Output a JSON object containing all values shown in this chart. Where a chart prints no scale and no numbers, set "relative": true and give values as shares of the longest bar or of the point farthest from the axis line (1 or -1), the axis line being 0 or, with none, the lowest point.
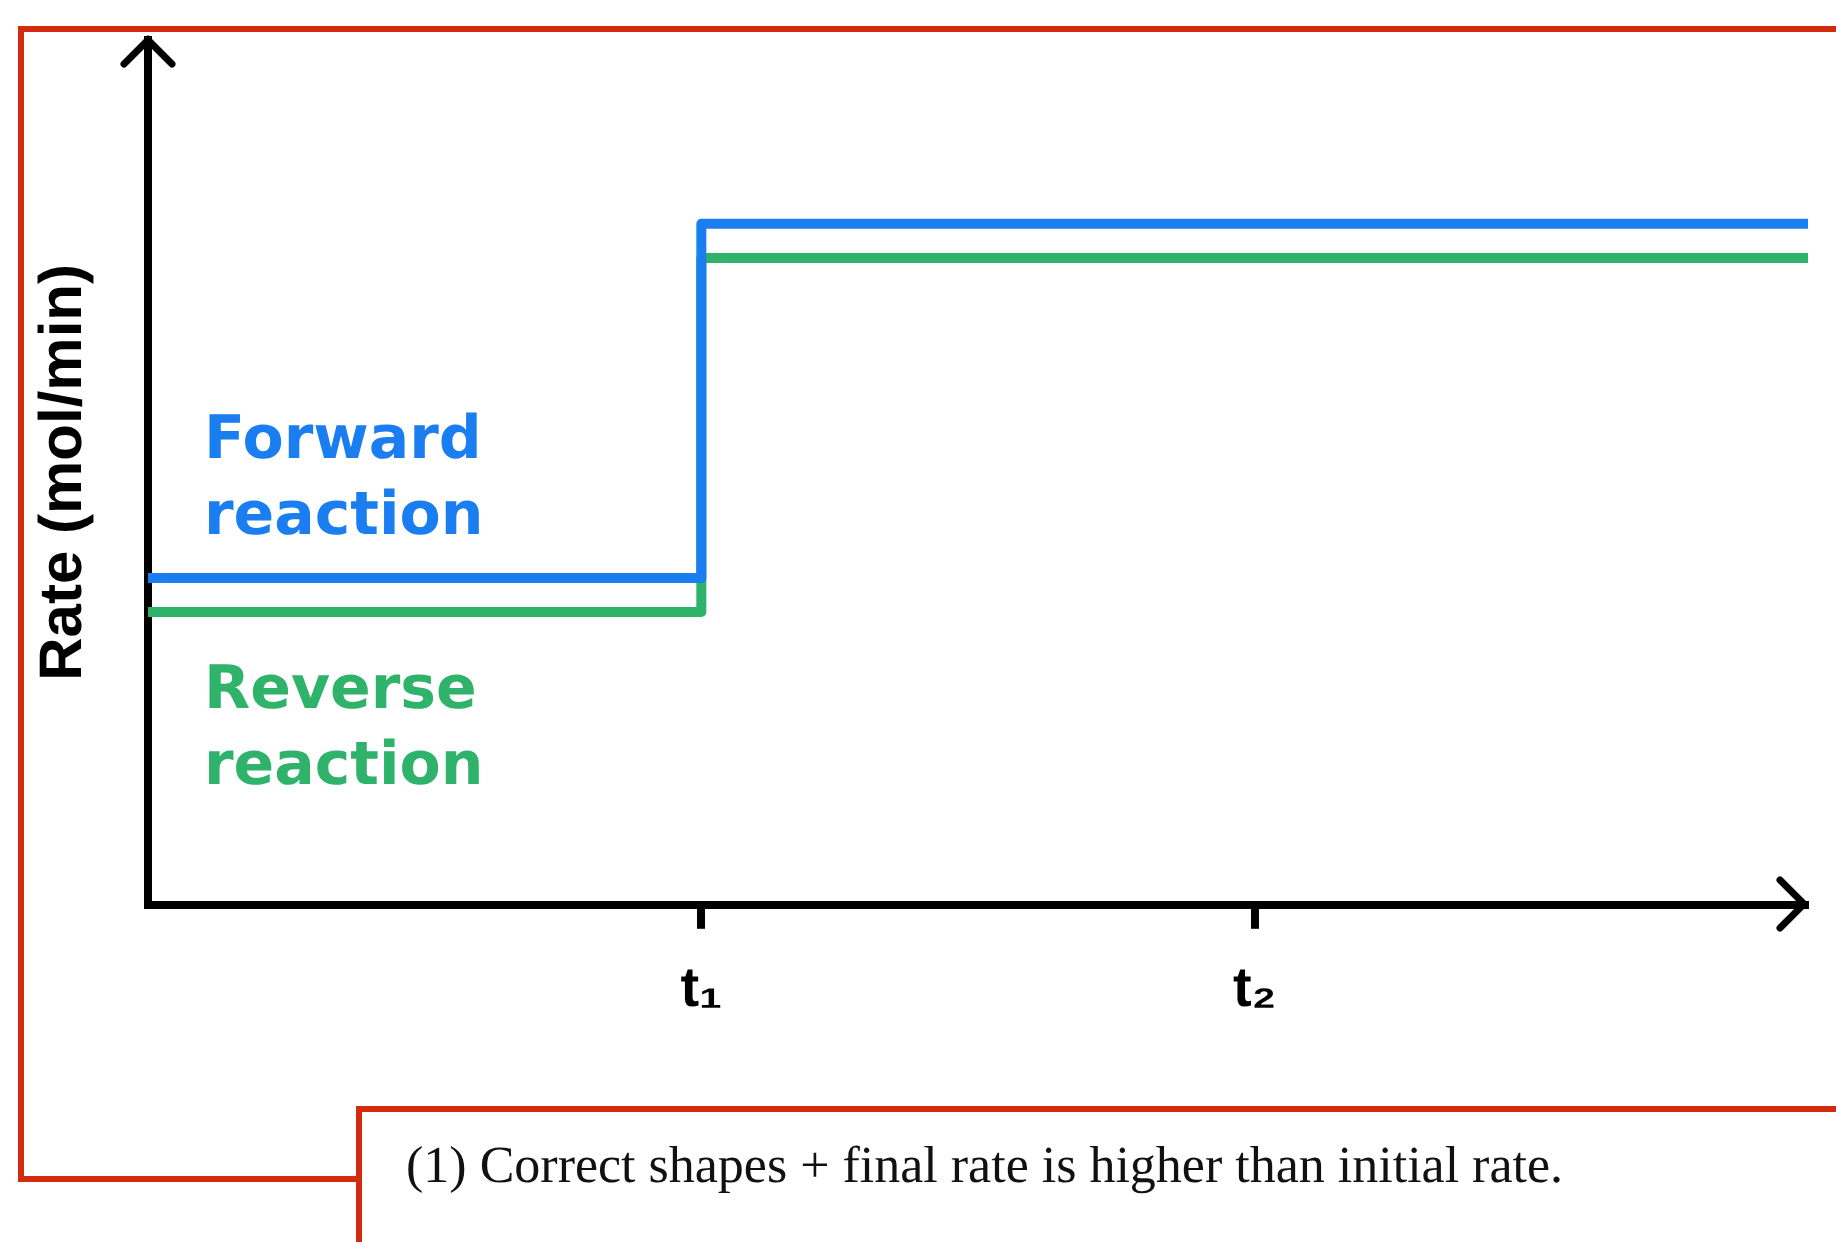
{
  "chart_data": {
    "type": "step",
    "relative": true,
    "ylabel": "Rate (mol/min)",
    "categories": [
      null,
      "t₁",
      "t₂",
      null
    ],
    "series": [
      {
        "name": "Forward reaction",
        "color": "#1a7ef0",
        "values": [
          0.48,
          1,
          1,
          1
        ]
      },
      {
        "name": "Reverse reaction",
        "color": "#2fb36a",
        "values": [
          0.43,
          0.95,
          0.95,
          0.95
        ]
      }
    ],
    "grid": false,
    "legend": false,
    "marker": "none",
    "line_style": "solid",
    "annotations": [
      "(1) Correct shapes + final rate is higher than initial rate."
    ]
  }
}
